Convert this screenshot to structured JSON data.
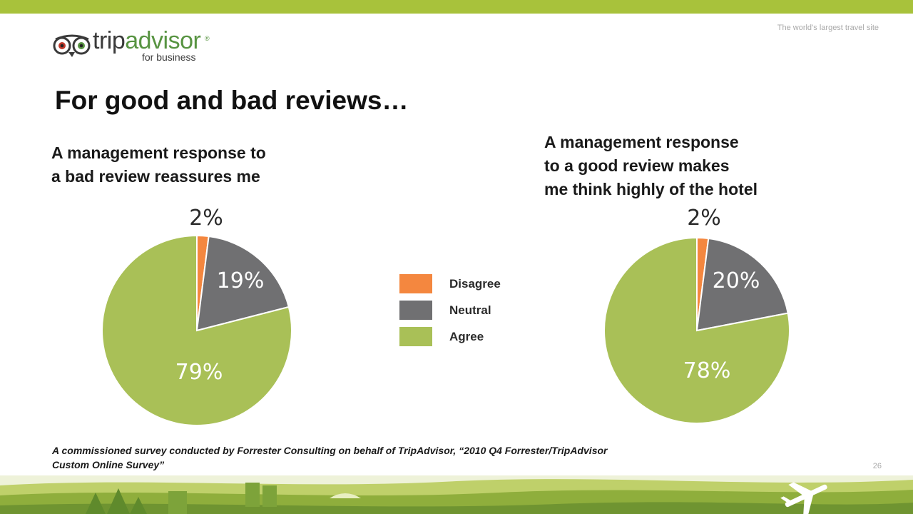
{
  "header": {
    "tagline": "The world’s largest travel site",
    "logo_text_1": "trip",
    "logo_text_2": "advisor",
    "logo_reg": "®",
    "logo_sub": "for business"
  },
  "page_title": "For good and bad reviews…",
  "legend": {
    "items": [
      {
        "label": "Disagree",
        "color": "#f4873f"
      },
      {
        "label": "Neutral",
        "color": "#707072"
      },
      {
        "label": "Agree",
        "color": "#a9c057"
      }
    ]
  },
  "chart_data": [
    {
      "type": "pie",
      "title_lines": [
        "A management response to",
        "a bad review reassures me"
      ],
      "categories": [
        "Disagree",
        "Neutral",
        "Agree"
      ],
      "values": [
        2,
        19,
        79
      ],
      "labels": [
        "2%",
        "19%",
        "79%"
      ],
      "colors": [
        "#f4873f",
        "#707072",
        "#a9c057"
      ],
      "legend": "center"
    },
    {
      "type": "pie",
      "title_lines": [
        "A management response",
        "to a good review makes",
        "me think highly of the hotel"
      ],
      "categories": [
        "Disagree",
        "Neutral",
        "Agree"
      ],
      "values": [
        2,
        20,
        78
      ],
      "labels": [
        "2%",
        "20%",
        "78%"
      ],
      "colors": [
        "#f4873f",
        "#707072",
        "#a9c057"
      ],
      "legend": "center"
    }
  ],
  "source_note": {
    "line1": "A commissioned survey conducted by Forrester Consulting on behalf of TripAdvisor, “2010 Q4 Forrester/TripAdvisor",
    "line2": "Custom Online Survey”"
  },
  "page_number": "26"
}
